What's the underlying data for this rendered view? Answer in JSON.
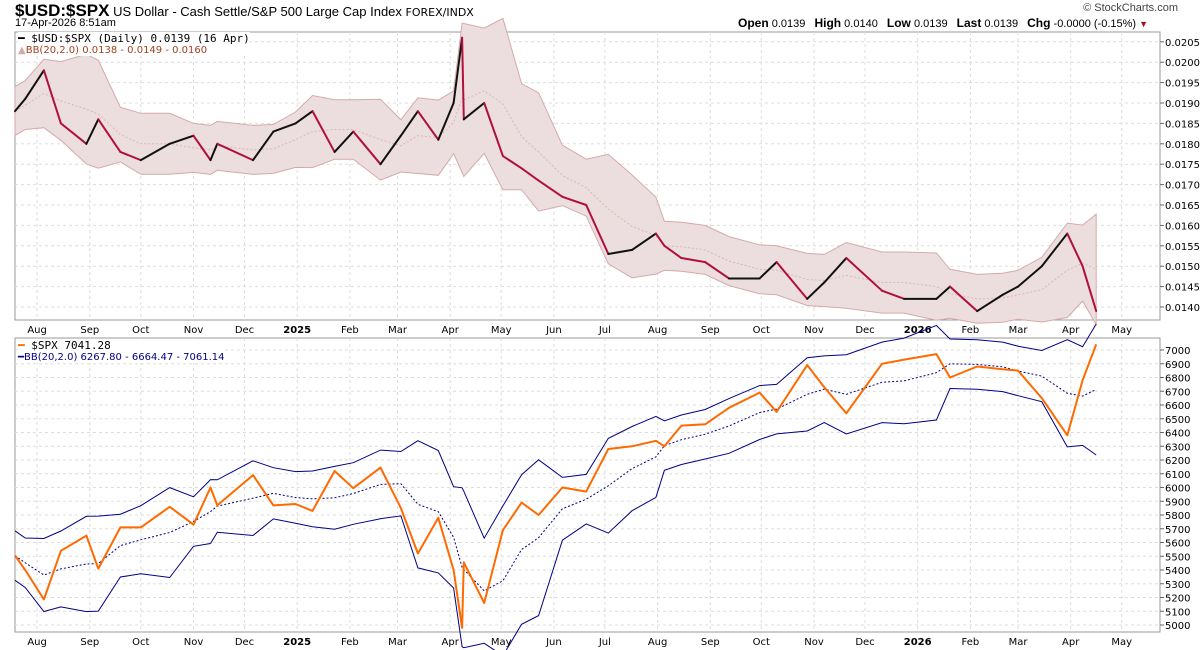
{
  "header": {
    "symbol": "$USD:$SPX",
    "description": "US Dollar - Cash Settle/S&P 500 Large Cap Index",
    "exchange": "FOREX/INDX",
    "datetime": "17-Apr-2026 8:51am",
    "brand": "© StockCharts.com",
    "open_label": "Open",
    "open": "0.0139",
    "high_label": "High",
    "high": "0.0140",
    "low_label": "Low",
    "low": "0.0139",
    "last_label": "Last",
    "last": "0.0139",
    "chg_label": "Chg",
    "chg": "-0.0000 (-0.15%)"
  },
  "colors": {
    "ratio_line": "#b0103a",
    "ratio_band_fill": "#ecdede",
    "ratio_band_edge": "#d4aaaa",
    "spx_line": "#ff6a00",
    "spx_band": "#000088",
    "grid": "#dddddd"
  },
  "chart_data": [
    {
      "type": "line",
      "title": "$USD:$SPX (Daily) 0.0139 (16 Apr)",
      "legend_bb": "BB(20,2.0) 0.0138 - 0.0149 - 0.0160",
      "ylim": [
        0.0137,
        0.0208
      ],
      "yticks": [
        "0.0140",
        "0.0145",
        "0.0150",
        "0.0155",
        "0.0160",
        "0.0165",
        "0.0170",
        "0.0175",
        "0.0180",
        "0.0185",
        "0.0190",
        "0.0195",
        "0.0200",
        "0.0205"
      ],
      "dates": [
        "2024-07-19",
        "2024-07-25",
        "2024-08-05",
        "2024-08-15",
        "2024-08-30",
        "2024-09-06",
        "2024-09-19",
        "2024-10-01",
        "2024-10-18",
        "2024-11-01",
        "2024-11-11",
        "2024-11-15",
        "2024-12-06",
        "2024-12-18",
        "2024-12-31",
        "2025-01-10",
        "2025-01-23",
        "2025-02-03",
        "2025-02-19",
        "2025-03-03",
        "2025-03-13",
        "2025-03-25",
        "2025-04-03",
        "2025-04-08",
        "2025-04-09",
        "2025-04-21",
        "2025-05-02",
        "2025-05-13",
        "2025-05-23",
        "2025-06-06",
        "2025-06-20",
        "2025-07-03",
        "2025-07-17",
        "2025-07-31",
        "2025-08-05",
        "2025-08-15",
        "2025-08-29",
        "2025-09-12",
        "2025-09-30",
        "2025-10-10",
        "2025-10-28",
        "2025-11-07",
        "2025-11-20",
        "2025-12-11",
        "2025-12-24",
        "2026-01-12",
        "2026-01-20",
        "2026-02-05",
        "2026-02-20",
        "2026-03-01",
        "2026-03-15",
        "2026-03-30",
        "2026-04-08",
        "2026-04-16"
      ],
      "values": [
        0.0188,
        0.0191,
        0.0198,
        0.0185,
        0.018,
        0.0186,
        0.0178,
        0.0176,
        0.018,
        0.0182,
        0.0176,
        0.018,
        0.0176,
        0.0183,
        0.0185,
        0.0188,
        0.0178,
        0.0183,
        0.0175,
        0.0182,
        0.0188,
        0.0181,
        0.019,
        0.0206,
        0.0186,
        0.019,
        0.0177,
        0.0174,
        0.0171,
        0.0167,
        0.0165,
        0.0153,
        0.0154,
        0.0158,
        0.0155,
        0.0152,
        0.0151,
        0.0147,
        0.0147,
        0.0151,
        0.0142,
        0.0146,
        0.0152,
        0.0144,
        0.0142,
        0.0142,
        0.0145,
        0.0139,
        0.0143,
        0.0145,
        0.015,
        0.0158,
        0.015,
        0.0139
      ]
    },
    {
      "type": "line",
      "title": "$SPX 7041.28",
      "legend_bb": "BB(20,2.0) 6267.80 - 6664.47 - 7061.14",
      "ylim": [
        4950,
        7080
      ],
      "yticks": [
        "5000",
        "5100",
        "5200",
        "5300",
        "5400",
        "5500",
        "5600",
        "5700",
        "5800",
        "5900",
        "6000",
        "6100",
        "6200",
        "6300",
        "6400",
        "6500",
        "6600",
        "6700",
        "6800",
        "6900",
        "7000"
      ],
      "values": [
        5505,
        5400,
        5186,
        5540,
        5650,
        5410,
        5710,
        5710,
        5860,
        5730,
        6000,
        5870,
        6090,
        5870,
        5880,
        5830,
        6120,
        5995,
        6145,
        5850,
        5520,
        5780,
        5400,
        4980,
        5456,
        5160,
        5690,
        5890,
        5800,
        6000,
        5970,
        6280,
        6300,
        6340,
        6300,
        6450,
        6460,
        6580,
        6690,
        6550,
        6890,
        6730,
        6540,
        6900,
        6930,
        6970,
        6800,
        6880,
        6860,
        6850,
        6650,
        6380,
        6780,
        7041
      ]
    },
    {
      "x_ticks": [
        {
          "label": "Aug",
          "date": "2024-08-01"
        },
        {
          "label": "Sep",
          "date": "2024-09-01"
        },
        {
          "label": "Oct",
          "date": "2024-10-01"
        },
        {
          "label": "Nov",
          "date": "2024-11-01"
        },
        {
          "label": "Dec",
          "date": "2024-12-01"
        },
        {
          "label": "2025",
          "date": "2025-01-01",
          "bold": true
        },
        {
          "label": "Feb",
          "date": "2025-02-01"
        },
        {
          "label": "Mar",
          "date": "2025-03-01"
        },
        {
          "label": "Apr",
          "date": "2025-04-01"
        },
        {
          "label": "May",
          "date": "2025-05-01"
        },
        {
          "label": "Jun",
          "date": "2025-06-01"
        },
        {
          "label": "Jul",
          "date": "2025-07-01"
        },
        {
          "label": "Aug",
          "date": "2025-08-01"
        },
        {
          "label": "Sep",
          "date": "2025-09-01"
        },
        {
          "label": "Oct",
          "date": "2025-10-01"
        },
        {
          "label": "Nov",
          "date": "2025-11-01"
        },
        {
          "label": "Dec",
          "date": "2025-12-01"
        },
        {
          "label": "2026",
          "date": "2026-01-01",
          "bold": true
        },
        {
          "label": "Feb",
          "date": "2026-02-01"
        },
        {
          "label": "Mar",
          "date": "2026-03-01"
        },
        {
          "label": "Apr",
          "date": "2026-04-01"
        },
        {
          "label": "May",
          "date": "2026-05-01"
        }
      ]
    }
  ]
}
